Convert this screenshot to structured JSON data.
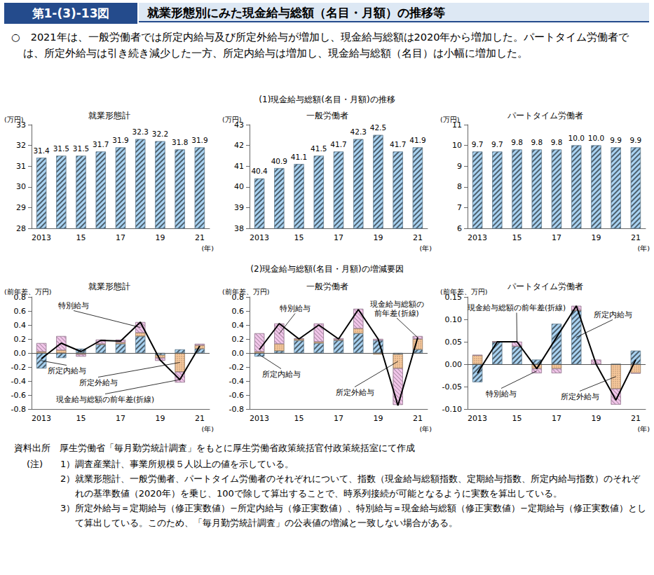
{
  "header": {
    "figure_number": "第1-(3)-13図",
    "title": "就業形態別にみた現金給与総額（名目・月額）の推移等"
  },
  "summary": "○　2021年は、一般労働者では所定内給与及び所定外給与が増加し、現金給与総額は2020年から増加した。パートタイム労働者では、所定外給与は引き続き減少した一方、所定内給与は増加し、現金給与総額（名目）は小幅に増加した。",
  "sections": [
    "(1)現金給与総額(名目・月額)の推移",
    "(2)現金給与総額(名目・月額)の増減要因"
  ],
  "chart_data": [
    {
      "type": "bar",
      "title": "就業形態計",
      "y_label": "(万円)",
      "x_label": "(年)",
      "categories": [
        "2013",
        null,
        "15",
        null,
        "17",
        null,
        "19",
        null,
        "21"
      ],
      "values": [
        31.4,
        31.5,
        31.5,
        31.7,
        31.9,
        32.3,
        32.2,
        31.8,
        31.9
      ],
      "color": "#a9d3f2",
      "data_labels": true,
      "ylim": [
        28,
        33
      ],
      "yticks": [
        28,
        29,
        30,
        31,
        32,
        33
      ],
      "grid": false
    },
    {
      "type": "bar",
      "title": "一般労働者",
      "y_label": "(万円)",
      "x_label": "(年)",
      "categories": [
        "2013",
        null,
        "15",
        null,
        "17",
        null,
        "19",
        null,
        "21"
      ],
      "values": [
        40.4,
        40.9,
        41.1,
        41.5,
        41.7,
        42.3,
        42.5,
        41.7,
        41.9
      ],
      "color": "#a9d3f2",
      "data_labels": true,
      "ylim": [
        38,
        43
      ],
      "yticks": [
        38,
        39,
        40,
        41,
        42,
        43
      ],
      "grid": false
    },
    {
      "type": "bar",
      "title": "パートタイム労働者",
      "y_label": "(万円)",
      "x_label": "(年)",
      "categories": [
        "2013",
        null,
        "15",
        null,
        "17",
        null,
        "19",
        null,
        "21"
      ],
      "values": [
        9.7,
        9.7,
        9.8,
        9.8,
        9.8,
        10.0,
        10.0,
        9.9,
        9.9
      ],
      "value_labels": [
        "9.7",
        "9.7",
        "9.8",
        "9.8",
        "9.8",
        "10.0",
        "10.0",
        "9.9",
        "9.9"
      ],
      "color": "#a9d3f2",
      "data_labels": true,
      "ylim": [
        6,
        11
      ],
      "yticks": [
        6,
        7,
        8,
        9,
        10,
        11
      ],
      "grid": false
    },
    {
      "type": "bar",
      "title": "就業形態計",
      "y_label": "(前年差、万円)",
      "x_label": "(年)",
      "stacked": true,
      "categories": [
        "2013",
        null,
        "15",
        null,
        "17",
        null,
        "19",
        null,
        "21"
      ],
      "series": [
        {
          "name": "所定内給与",
          "color": "#a9d3f2",
          "values": [
            -0.22,
            -0.07,
            0.06,
            0.12,
            0.13,
            0.24,
            -0.03,
            0.05,
            0.06
          ]
        },
        {
          "name": "所定外給与",
          "color": "#f7c89b",
          "values": [
            0.02,
            0.04,
            -0.02,
            0.01,
            0.02,
            0.05,
            -0.04,
            -0.27,
            0.05
          ]
        },
        {
          "name": "特別給与",
          "color": "#f2c6ea",
          "values": [
            0.12,
            0.2,
            -0.03,
            0.06,
            0.04,
            0.15,
            -0.04,
            -0.15,
            0.02
          ]
        },
        {
          "name": "現金給与総額の前年差(折線)",
          "type": "line",
          "color": "#000000",
          "values": [
            -0.08,
            0.14,
            0.02,
            0.18,
            0.17,
            0.44,
            -0.1,
            -0.38,
            0.1
          ]
        }
      ],
      "annotations": [
        "特別給与",
        "所定内給与",
        "所定外給与",
        "現金給与総額の前年差(折線)"
      ],
      "ylim": [
        -0.8,
        0.8
      ],
      "yticks": [
        -0.8,
        -0.6,
        -0.4,
        -0.2,
        {
          "value": 0,
          "label": "0.0"
        },
        0.2,
        0.4,
        0.6,
        0.8
      ],
      "grid": false
    },
    {
      "type": "bar",
      "title": "一般労働者",
      "y_label": "(前年差、万円)",
      "x_label": "(年)",
      "stacked": true,
      "categories": [
        "2013",
        null,
        "15",
        null,
        "17",
        null,
        "19",
        null,
        "21"
      ],
      "series": [
        {
          "name": "所定内給与",
          "color": "#a9d3f2",
          "values": [
            -0.05,
            0.03,
            0.18,
            0.14,
            0.18,
            0.28,
            0.18,
            -0.02,
            0.05
          ]
        },
        {
          "name": "所定外給与",
          "color": "#f7c89b",
          "values": [
            0.02,
            0.1,
            0.02,
            0.02,
            0.01,
            0.07,
            -0.02,
            -0.2,
            0.15
          ]
        },
        {
          "name": "特別給与",
          "color": "#f2c6ea",
          "values": [
            0.26,
            0.29,
            0.01,
            0.26,
            0.02,
            0.28,
            0.02,
            -0.52,
            0.04
          ]
        },
        {
          "name": "現金給与総額の前年差(折線)",
          "type": "line",
          "color": "#000000",
          "values": [
            0.05,
            0.42,
            0.2,
            0.4,
            0.2,
            0.62,
            0.2,
            -0.75,
            0.22
          ]
        }
      ],
      "annotations": [
        "特別給与",
        "所定内給与",
        "所定外給与",
        "現金給与総額の\n前年差(折線)"
      ],
      "ylim": [
        -0.8,
        0.8
      ],
      "yticks": [
        -0.8,
        -0.6,
        -0.4,
        -0.2,
        {
          "value": 0,
          "label": "0.0"
        },
        0.2,
        0.4,
        0.6,
        0.8
      ],
      "grid": false
    },
    {
      "type": "bar",
      "title": "パートタイム労働者",
      "y_label": "(前年差、万円)",
      "x_label": "(年)",
      "stacked": true,
      "categories": [
        "2013",
        null,
        "15",
        null,
        "17",
        null,
        "19",
        null,
        "21"
      ],
      "series": [
        {
          "name": "所定内給与",
          "color": "#a9d3f2",
          "values": [
            -0.04,
            0.05,
            0.04,
            0.01,
            0.09,
            0.12,
            0.0,
            0.0,
            0.03
          ]
        },
        {
          "name": "所定外給与",
          "color": "#f7c89b",
          "values": [
            0.02,
            0.0,
            0.0,
            -0.01,
            -0.01,
            0.0,
            0.0,
            -0.055,
            -0.02
          ]
        },
        {
          "name": "特別給与",
          "color": "#f2c6ea",
          "values": [
            0.0,
            0.0,
            0.01,
            -0.01,
            -0.01,
            0.01,
            0.01,
            -0.035,
            0.0
          ]
        },
        {
          "name": "現金給与総額の前年差(折線)",
          "type": "line",
          "color": "#000000",
          "values": [
            -0.02,
            0.05,
            0.05,
            -0.01,
            0.06,
            0.13,
            0.0,
            -0.08,
            0.01
          ]
        }
      ],
      "annotations": [
        "現金給与総額の前年差(折線)",
        "所定内給与",
        "特別給与",
        "所定外給与"
      ],
      "ylim": [
        -0.1,
        0.15
      ],
      "yticks": [
        {
          "value": -0.1,
          "label": "-0.10"
        },
        -0.05,
        {
          "value": 0,
          "label": "0.00"
        },
        0.05,
        {
          "value": 0.1,
          "label": "0.10"
        },
        0.15
      ],
      "grid": false
    }
  ],
  "source": {
    "label": "資料出所",
    "text": "厚生労働省「毎月勤労統計調査」をもとに厚生労働省政策統括官付政策統括室にて作成"
  },
  "notes": {
    "label": "(注)",
    "items": [
      "1）調査産業計、事業所規模５人以上の値を示している。",
      "2）就業形態計、一般労働者、パートタイム労働者のそれぞれについて、指数（現金給与総額指数、定期給与指数、所定内給与指数）のそれぞれの基準数値（2020年）を乗じ、100で除して算出することで、時系列接続が可能となるように実数を算出している。",
      "3）所定外給与＝定期給与（修正実数値）−所定内給与（修正実数値）、特別給与＝現金給与総額（修正実数値）−定期給与（修正実数値）として算出している。このため、「毎月勤労統計調査」の公表値の増減と一致しない場合がある。"
    ]
  }
}
